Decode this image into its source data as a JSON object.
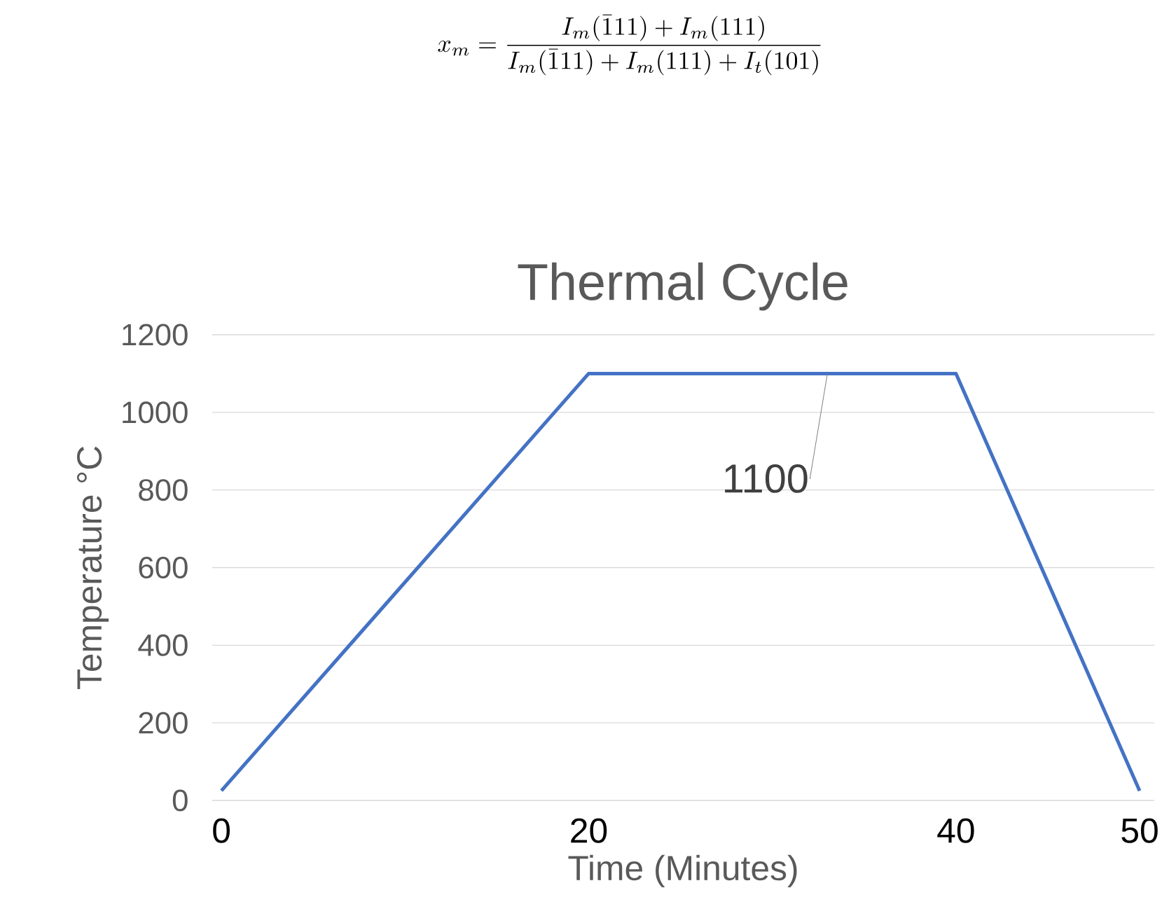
{
  "chart_data": {
    "type": "line",
    "title": "Thermal Cycle",
    "xlabel": "Time (Minutes)",
    "ylabel": "Temperature °C",
    "annotations": [
      "x_m = \\frac{I_m(\\bar{1}11) + I_m(111)}{I_m(\\bar{1}11) + I_m(111) + I_t(101)}",
      {
        "text": "1100",
        "x": 33,
        "y": 1100
      }
    ],
    "x": [
      0,
      20,
      40,
      50
    ],
    "values": [
      25,
      1100,
      1100,
      25
    ],
    "color": "#4472c4",
    "xlim": [
      -0.5,
      50.8
    ],
    "ylim": [
      0,
      1200
    ],
    "xticks": [
      0,
      20,
      40,
      50
    ],
    "yticks": [
      0,
      200,
      400,
      600,
      800,
      1000,
      1200
    ],
    "grid": "y"
  }
}
